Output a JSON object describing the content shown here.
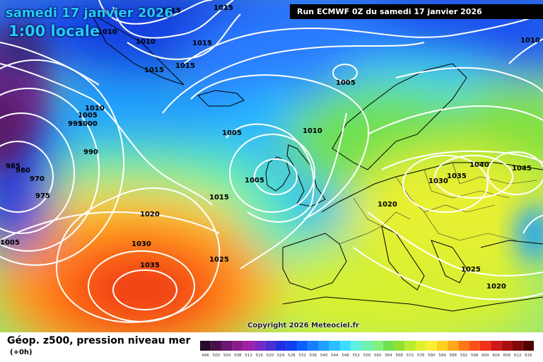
{
  "header": {
    "date": "samedi 17 janvier 2026",
    "local_time": "1:00 locale",
    "run_info": "Run ECMWF 0Z du samedi 17 janvier 2026"
  },
  "copyright": "Copyright 2026 Meteociel.fr",
  "footer": {
    "title": "Géop. z500, pression niveau mer",
    "subtitle": "(+0h)"
  },
  "scale": {
    "labels": [
      "496",
      "500",
      "504",
      "508",
      "512",
      "516",
      "520",
      "524",
      "528",
      "532",
      "536",
      "540",
      "544",
      "548",
      "552",
      "556",
      "560",
      "564",
      "568",
      "572",
      "576",
      "580",
      "584",
      "588",
      "592",
      "596",
      "600",
      "604",
      "608",
      "612",
      "616"
    ],
    "colors": [
      "#2a0a2a",
      "#4a0f4a",
      "#6a1570",
      "#8b1d8b",
      "#a020a8",
      "#7a28c0",
      "#4b2ed0",
      "#2030e0",
      "#1040f0",
      "#0a60ff",
      "#1480ff",
      "#1ea0ff",
      "#28c0ff",
      "#3cdcff",
      "#5cf0e0",
      "#70f0b0",
      "#80f080",
      "#70e050",
      "#90e030",
      "#b8ec30",
      "#e0f030",
      "#f8f030",
      "#ffd020",
      "#ffa818",
      "#ff7818",
      "#ff5018",
      "#f03018",
      "#d01818",
      "#a81010",
      "#800808",
      "#500000"
    ]
  },
  "isobars": [
    {
      "text": "1015",
      "kind": "pressure"
    },
    {
      "text": "1015",
      "kind": "pressure"
    },
    {
      "text": "1010",
      "kind": "pressure"
    },
    {
      "text": "1010",
      "kind": "pressure"
    },
    {
      "text": "1015",
      "kind": "pressure"
    },
    {
      "text": "1015",
      "kind": "pressure"
    },
    {
      "text": "1015",
      "kind": "pressure"
    },
    {
      "text": "1010",
      "kind": "pressure"
    },
    {
      "text": "1005",
      "kind": "pressure"
    },
    {
      "text": "1000",
      "kind": "pressure"
    },
    {
      "text": "995",
      "kind": "pressure"
    },
    {
      "text": "990",
      "kind": "pressure"
    },
    {
      "text": "985",
      "kind": "pressure"
    },
    {
      "text": "980",
      "kind": "pressure"
    },
    {
      "text": "970",
      "kind": "pressure"
    },
    {
      "text": "975",
      "kind": "pressure"
    },
    {
      "text": "1005",
      "kind": "pressure"
    },
    {
      "text": "1005",
      "kind": "pressure"
    },
    {
      "text": "1005",
      "kind": "pressure"
    },
    {
      "text": "1010",
      "kind": "pressure"
    },
    {
      "text": "1015",
      "kind": "pressure"
    },
    {
      "text": "1020",
      "kind": "pressure"
    },
    {
      "text": "1030",
      "kind": "pressure"
    },
    {
      "text": "1035",
      "kind": "pressure"
    },
    {
      "text": "1025",
      "kind": "pressure"
    },
    {
      "text": "1005",
      "kind": "pressure"
    },
    {
      "text": "1020",
      "kind": "pressure"
    },
    {
      "text": "1030",
      "kind": "pressure"
    },
    {
      "text": "1035",
      "kind": "pressure"
    },
    {
      "text": "1040",
      "kind": "pressure"
    },
    {
      "text": "1045",
      "kind": "pressure"
    },
    {
      "text": "1025",
      "kind": "pressure"
    },
    {
      "text": "1020",
      "kind": "pressure"
    },
    {
      "text": "1010",
      "kind": "pressure"
    }
  ]
}
